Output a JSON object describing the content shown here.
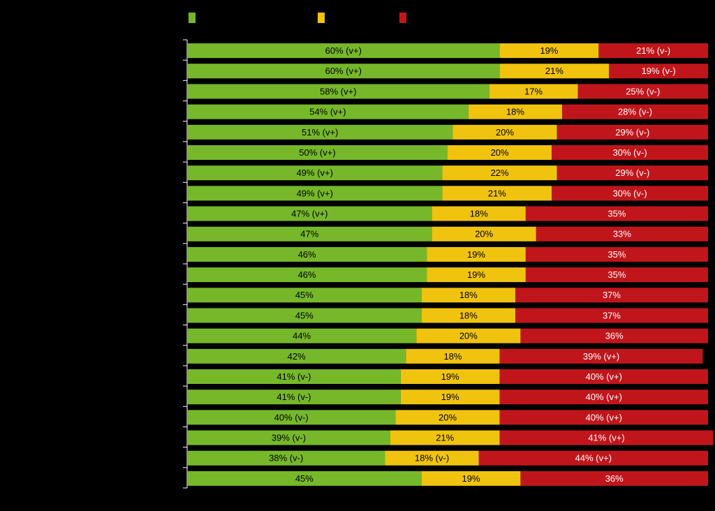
{
  "chart_data": {
    "type": "stacked-barh",
    "categories": [
      null,
      null,
      null,
      null,
      null,
      null,
      null,
      null,
      null,
      null,
      null,
      null,
      null,
      null,
      null,
      null,
      null,
      null,
      null,
      null,
      null,
      null
    ],
    "xlim": [
      0,
      100
    ],
    "series": [
      {
        "color": "#76b82a",
        "values": [
          60,
          60,
          58,
          54,
          51,
          50,
          49,
          49,
          47,
          47,
          46,
          46,
          45,
          45,
          44,
          42,
          41,
          41,
          40,
          39,
          38,
          45
        ],
        "value_labels": [
          "60% (v+)",
          "60% (v+)",
          "58% (v+)",
          "54% (v+)",
          "51% (v+)",
          "50% (v+)",
          "49% (v+)",
          "49% (v+)",
          "47% (v+)",
          "47%",
          "46%",
          "46%",
          "45%",
          "45%",
          "44%",
          "42%",
          "41% (v-)",
          "41% (v-)",
          "40% (v-)",
          "39% (v-)",
          "38% (v-)",
          "45%"
        ]
      },
      {
        "color": "#f0c30f",
        "values": [
          19,
          21,
          17,
          18,
          20,
          20,
          22,
          21,
          18,
          20,
          19,
          19,
          18,
          18,
          20,
          18,
          19,
          19,
          20,
          21,
          18,
          19
        ],
        "value_labels": [
          "19%",
          "21%",
          "17%",
          "18%",
          "20%",
          "20%",
          "22%",
          "21%",
          "18%",
          "20%",
          "19%",
          "19%",
          "18%",
          "18%",
          "20%",
          "18%",
          "19%",
          "19%",
          "20%",
          "21%",
          "18% (v-)",
          "19%"
        ]
      },
      {
        "color": "#c0161b",
        "values": [
          21,
          19,
          25,
          28,
          29,
          30,
          29,
          30,
          35,
          33,
          35,
          35,
          37,
          37,
          36,
          39,
          40,
          40,
          40,
          41,
          44,
          36
        ],
        "value_labels": [
          "21% (v-)",
          "19% (v-)",
          "25% (v-)",
          "28% (v-)",
          "29% (v-)",
          "30% (v-)",
          "29% (v-)",
          "30% (v-)",
          "35%",
          "33%",
          "35%",
          "35%",
          "37%",
          "37%",
          "36%",
          "39% (v+)",
          "40% (v+)",
          "40% (v+)",
          "40% (v+)",
          "41% (v+)",
          "44% (v+)",
          "36%"
        ]
      }
    ]
  }
}
